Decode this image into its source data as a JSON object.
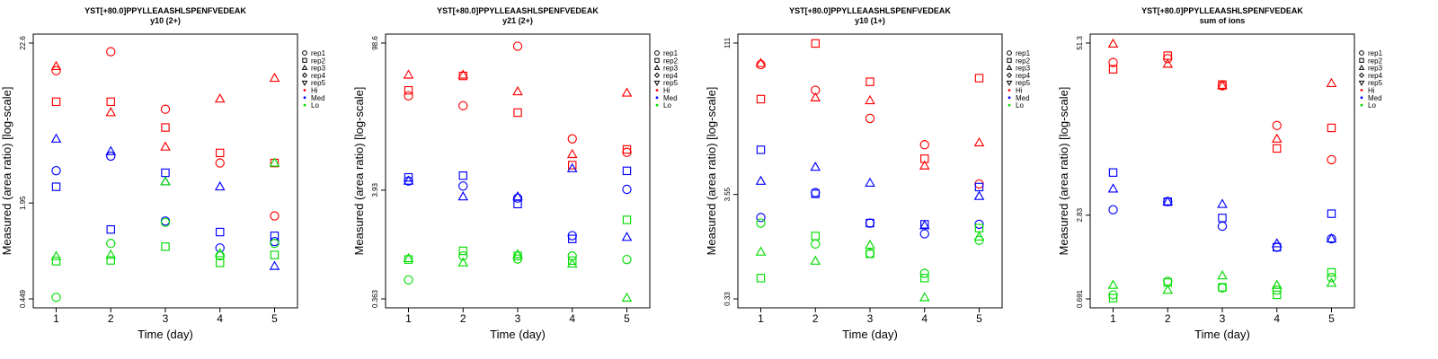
{
  "chart_data": [
    {
      "type": "scatter",
      "title": "YST[+80.0]PPYLLEAASHLSPENFVEDEAK",
      "subtitle": "y10 (2+)",
      "xlabel": "Time (day)",
      "ylabel": "Measured (area ratio) [log-scale]",
      "xticks": [
        "1",
        "2",
        "3",
        "4",
        "5"
      ],
      "yticks": [
        "0.449",
        "1.95",
        "22.6"
      ],
      "ylim": [
        0.449,
        22.6
      ],
      "log_y": true,
      "legend": [
        {
          "label": "rep1",
          "kind": "shape",
          "shape": "circle"
        },
        {
          "label": "rep2",
          "kind": "shape",
          "shape": "square"
        },
        {
          "label": "rep3",
          "kind": "shape",
          "shape": "triangle"
        },
        {
          "label": "rep4",
          "kind": "shape",
          "shape": "diamond"
        },
        {
          "label": "rep5",
          "kind": "shape",
          "shape": "triangle-down"
        },
        {
          "label": "Hi",
          "kind": "color",
          "color": "#ff0000"
        },
        {
          "label": "Med",
          "kind": "color",
          "color": "#0000ff"
        },
        {
          "label": "Lo",
          "kind": "color",
          "color": "#00dd00"
        }
      ],
      "series": [
        {
          "group": "Hi",
          "color": "#ff0000",
          "shape": "circle",
          "x": [
            1,
            2,
            3,
            4,
            5
          ],
          "y": [
            14.8,
            19.8,
            8.2,
            3.6,
            1.6
          ]
        },
        {
          "group": "Hi",
          "color": "#ff0000",
          "shape": "square",
          "x": [
            1,
            2,
            3,
            4,
            5
          ],
          "y": [
            9.2,
            9.2,
            6.2,
            4.2,
            3.6
          ]
        },
        {
          "group": "Hi",
          "color": "#ff0000",
          "shape": "triangle",
          "x": [
            1,
            2,
            3,
            4,
            5
          ],
          "y": [
            15.8,
            7.8,
            4.6,
            9.6,
            13.2
          ]
        },
        {
          "group": "Med",
          "color": "#0000ff",
          "shape": "circle",
          "x": [
            1,
            2,
            3,
            4,
            5
          ],
          "y": [
            3.2,
            4.0,
            1.48,
            0.98,
            1.08
          ]
        },
        {
          "group": "Med",
          "color": "#0000ff",
          "shape": "square",
          "x": [
            1,
            2,
            3,
            4,
            5
          ],
          "y": [
            2.5,
            1.3,
            3.1,
            1.25,
            1.18
          ]
        },
        {
          "group": "Med",
          "color": "#0000ff",
          "shape": "triangle",
          "x": [
            1,
            2,
            3,
            4,
            5
          ],
          "y": [
            5.2,
            4.3,
            2.7,
            2.5,
            0.74
          ]
        },
        {
          "group": "Lo",
          "color": "#00dd00",
          "shape": "circle",
          "x": [
            1,
            2,
            3,
            4,
            5
          ],
          "y": [
            0.46,
            1.05,
            1.45,
            0.87,
            1.05
          ]
        },
        {
          "group": "Lo",
          "color": "#00dd00",
          "shape": "square",
          "x": [
            1,
            2,
            3,
            4,
            5
          ],
          "y": [
            0.8,
            0.81,
            1.0,
            0.78,
            0.88
          ]
        },
        {
          "group": "Lo",
          "color": "#00dd00",
          "shape": "triangle",
          "x": [
            1,
            2,
            3,
            4,
            5
          ],
          "y": [
            0.86,
            0.88,
            2.7,
            0.9,
            3.6
          ]
        }
      ]
    },
    {
      "type": "scatter",
      "title": "YST[+80.0]PPYLLEAASHLSPENFVEDEAK",
      "subtitle": "y21 (2+)",
      "xlabel": "Time (day)",
      "ylabel": "Measured (area ratio) [log-scale]",
      "xticks": [
        "1",
        "2",
        "3",
        "4",
        "5"
      ],
      "yticks": [
        "0.363",
        "3.93",
        "98.6"
      ],
      "ylim": [
        0.363,
        98.6
      ],
      "log_y": true,
      "legend": [
        {
          "label": "rep1",
          "kind": "shape",
          "shape": "circle"
        },
        {
          "label": "rep2",
          "kind": "shape",
          "shape": "square"
        },
        {
          "label": "rep3",
          "kind": "shape",
          "shape": "triangle"
        },
        {
          "label": "rep4",
          "kind": "shape",
          "shape": "diamond"
        },
        {
          "label": "rep5",
          "kind": "shape",
          "shape": "triangle-down"
        },
        {
          "label": "Hi",
          "kind": "color",
          "color": "#ff0000"
        },
        {
          "label": "Med",
          "kind": "color",
          "color": "#0000ff"
        },
        {
          "label": "Lo",
          "kind": "color",
          "color": "#00dd00"
        }
      ],
      "series": [
        {
          "group": "Hi",
          "color": "#ff0000",
          "shape": "circle",
          "x": [
            1,
            2,
            3,
            4,
            5
          ],
          "y": [
            31,
            25,
            92,
            12.1,
            9.0
          ]
        },
        {
          "group": "Hi",
          "color": "#ff0000",
          "shape": "square",
          "x": [
            1,
            2,
            3,
            4,
            5
          ],
          "y": [
            35,
            48,
            21.5,
            6.8,
            9.6
          ]
        },
        {
          "group": "Hi",
          "color": "#ff0000",
          "shape": "triangle",
          "x": [
            1,
            2,
            3,
            4,
            5
          ],
          "y": [
            49,
            49,
            34,
            8.6,
            33
          ]
        },
        {
          "group": "Med",
          "color": "#0000ff",
          "shape": "circle",
          "x": [
            1,
            2,
            3,
            4,
            5
          ],
          "y": [
            4.8,
            4.3,
            3.3,
            1.45,
            4.0
          ]
        },
        {
          "group": "Med",
          "color": "#0000ff",
          "shape": "square",
          "x": [
            1,
            2,
            3,
            4,
            5
          ],
          "y": [
            5.2,
            5.4,
            2.9,
            1.35,
            6.0
          ]
        },
        {
          "group": "Med",
          "color": "#0000ff",
          "shape": "triangle",
          "x": [
            1,
            2,
            3,
            4,
            5
          ],
          "y": [
            4.8,
            3.4,
            3.4,
            6.3,
            1.4
          ]
        },
        {
          "group": "Lo",
          "color": "#00dd00",
          "shape": "circle",
          "x": [
            1,
            2,
            3,
            4,
            5
          ],
          "y": [
            0.55,
            0.93,
            0.87,
            0.93,
            0.86
          ]
        },
        {
          "group": "Lo",
          "color": "#00dd00",
          "shape": "square",
          "x": [
            1,
            2,
            3,
            4,
            5
          ],
          "y": [
            0.86,
            1.04,
            0.93,
            0.84,
            2.05
          ]
        },
        {
          "group": "Lo",
          "color": "#00dd00",
          "shape": "triangle",
          "x": [
            1,
            2,
            3,
            4,
            5
          ],
          "y": [
            0.88,
            0.8,
            0.96,
            0.78,
            0.37
          ]
        }
      ]
    },
    {
      "type": "scatter",
      "title": "YST[+80.0]PPYLLEAASHLSPENFVEDEAK",
      "subtitle": "y10 (1+)",
      "xlabel": "Time (day)",
      "ylabel": "Measured (area ratio) [log-scale]",
      "xticks": [
        "1",
        "2",
        "3",
        "4",
        "5"
      ],
      "yticks": [
        "0.33",
        "3.55",
        "111"
      ],
      "ylim": [
        0.33,
        111
      ],
      "log_y": true,
      "legend": [
        {
          "label": "rep1",
          "kind": "shape",
          "shape": "circle"
        },
        {
          "label": "rep2",
          "kind": "shape",
          "shape": "square"
        },
        {
          "label": "rep3",
          "kind": "shape",
          "shape": "triangle"
        },
        {
          "label": "rep4",
          "kind": "shape",
          "shape": "diamond"
        },
        {
          "label": "rep5",
          "kind": "shape",
          "shape": "triangle-down"
        },
        {
          "label": "Hi",
          "kind": "color",
          "color": "#ff0000"
        },
        {
          "label": "Med",
          "kind": "color",
          "color": "#0000ff"
        },
        {
          "label": "Lo",
          "kind": "color",
          "color": "#00dd00"
        }
      ],
      "series": [
        {
          "group": "Hi",
          "color": "#ff0000",
          "shape": "circle",
          "x": [
            1,
            2,
            3,
            4,
            5
          ],
          "y": [
            68,
            38,
            20,
            11,
            4.5
          ]
        },
        {
          "group": "Hi",
          "color": "#ff0000",
          "shape": "square",
          "x": [
            1,
            2,
            3,
            4,
            5
          ],
          "y": [
            31,
            110,
            46,
            8,
            50
          ]
        },
        {
          "group": "Hi",
          "color": "#ff0000",
          "shape": "triangle",
          "x": [
            1,
            2,
            3,
            4,
            5
          ],
          "y": [
            70,
            32,
            30,
            6.8,
            11.5
          ]
        },
        {
          "group": "Med",
          "color": "#0000ff",
          "shape": "circle",
          "x": [
            1,
            2,
            3,
            4,
            5
          ],
          "y": [
            2.1,
            3.7,
            1.85,
            1.45,
            1.8
          ]
        },
        {
          "group": "Med",
          "color": "#0000ff",
          "shape": "square",
          "x": [
            1,
            2,
            3,
            4,
            5
          ],
          "y": [
            9.8,
            3.6,
            1.85,
            1.8,
            4.2
          ]
        },
        {
          "group": "Med",
          "color": "#0000ff",
          "shape": "triangle",
          "x": [
            1,
            2,
            3,
            4,
            5
          ],
          "y": [
            4.8,
            6.6,
            4.6,
            1.75,
            3.4
          ]
        },
        {
          "group": "Lo",
          "color": "#00dd00",
          "shape": "circle",
          "x": [
            1,
            2,
            3,
            4,
            5
          ],
          "y": [
            1.85,
            1.15,
            0.93,
            0.59,
            1.25
          ]
        },
        {
          "group": "Lo",
          "color": "#00dd00",
          "shape": "square",
          "x": [
            1,
            2,
            3,
            4,
            5
          ],
          "y": [
            0.53,
            1.38,
            0.92,
            0.53,
            1.65
          ]
        },
        {
          "group": "Lo",
          "color": "#00dd00",
          "shape": "triangle",
          "x": [
            1,
            2,
            3,
            4,
            5
          ],
          "y": [
            0.96,
            0.78,
            1.12,
            0.34,
            1.35
          ]
        }
      ]
    },
    {
      "type": "scatter",
      "title": "YST[+80.0]PPYLLEAASHLSPENFVEDEAK",
      "subtitle": "sum of ions",
      "xlabel": "Time (day)",
      "ylabel": "Measured (area ratio) [log-scale]",
      "xticks": [
        "1",
        "2",
        "3",
        "4",
        "5"
      ],
      "yticks": [
        "0.691",
        "2.83",
        "51.3"
      ],
      "ylim": [
        0.691,
        51.3
      ],
      "log_y": true,
      "legend": [
        {
          "label": "rep1",
          "kind": "shape",
          "shape": "circle"
        },
        {
          "label": "rep2",
          "kind": "shape",
          "shape": "square"
        },
        {
          "label": "rep3",
          "kind": "shape",
          "shape": "triangle"
        },
        {
          "label": "rep4",
          "kind": "shape",
          "shape": "diamond"
        },
        {
          "label": "rep5",
          "kind": "shape",
          "shape": "triangle-down"
        },
        {
          "label": "Hi",
          "kind": "color",
          "color": "#ff0000"
        },
        {
          "label": "Med",
          "kind": "color",
          "color": "#0000ff"
        },
        {
          "label": "Lo",
          "kind": "color",
          "color": "#00dd00"
        }
      ],
      "series": [
        {
          "group": "Hi",
          "color": "#ff0000",
          "shape": "circle",
          "x": [
            1,
            2,
            3,
            4,
            5
          ],
          "y": [
            37,
            39.5,
            25,
            12.8,
            7.2
          ]
        },
        {
          "group": "Hi",
          "color": "#ff0000",
          "shape": "square",
          "x": [
            1,
            2,
            3,
            4,
            5
          ],
          "y": [
            33,
            41.5,
            25.5,
            8.7,
            12.3
          ]
        },
        {
          "group": "Hi",
          "color": "#ff0000",
          "shape": "triangle",
          "x": [
            1,
            2,
            3,
            4,
            5
          ],
          "y": [
            50.5,
            36,
            25,
            10.2,
            26
          ]
        },
        {
          "group": "Med",
          "color": "#0000ff",
          "shape": "circle",
          "x": [
            1,
            2,
            3,
            4,
            5
          ],
          "y": [
            3.1,
            3.55,
            2.35,
            1.65,
            1.9
          ]
        },
        {
          "group": "Med",
          "color": "#0000ff",
          "shape": "square",
          "x": [
            1,
            2,
            3,
            4,
            5
          ],
          "y": [
            5.8,
            3.55,
            2.7,
            1.65,
            2.9
          ]
        },
        {
          "group": "Med",
          "color": "#0000ff",
          "shape": "triangle",
          "x": [
            1,
            2,
            3,
            4,
            5
          ],
          "y": [
            4.4,
            3.55,
            3.4,
            1.75,
            1.9
          ]
        },
        {
          "group": "Lo",
          "color": "#00dd00",
          "shape": "circle",
          "x": [
            1,
            2,
            3,
            4,
            5
          ],
          "y": [
            0.74,
            0.93,
            0.83,
            0.8,
            0.99
          ]
        },
        {
          "group": "Lo",
          "color": "#00dd00",
          "shape": "square",
          "x": [
            1,
            2,
            3,
            4,
            5
          ],
          "y": [
            0.7,
            0.91,
            0.84,
            0.74,
            1.08
          ]
        },
        {
          "group": "Lo",
          "color": "#00dd00",
          "shape": "triangle",
          "x": [
            1,
            2,
            3,
            4,
            5
          ],
          "y": [
            0.87,
            0.8,
            1.02,
            0.87,
            0.9
          ]
        }
      ]
    }
  ]
}
